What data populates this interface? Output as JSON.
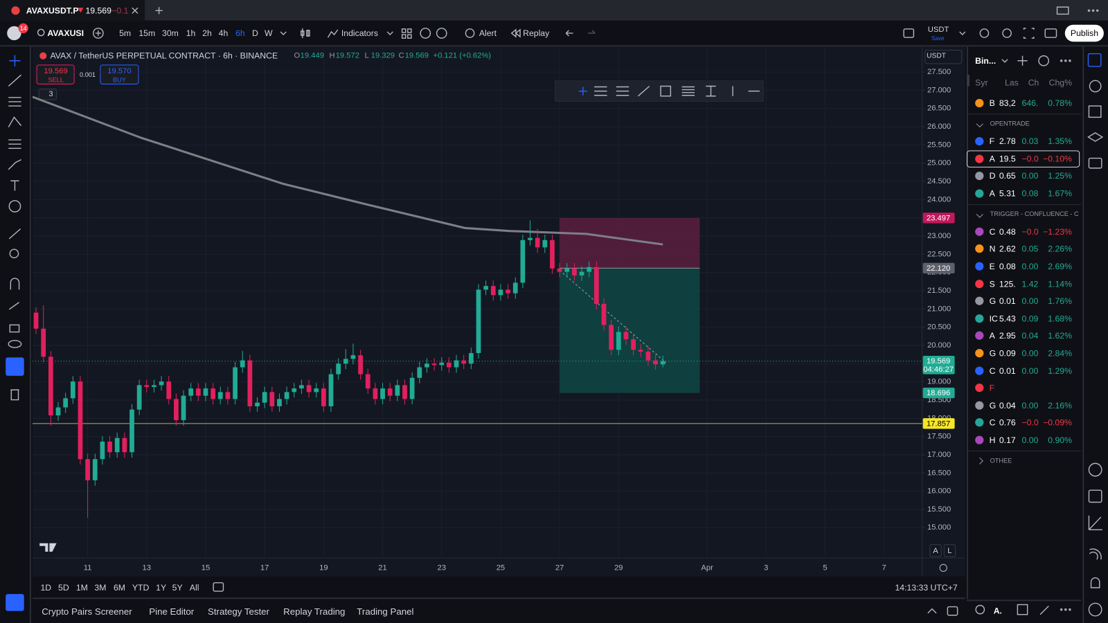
{
  "tab": {
    "title": "AVAXUSDT.P",
    "price": "19.569",
    "change": "−0.1"
  },
  "header": {
    "notifications": "14",
    "symbol": "AVAXUSI",
    "intervals": [
      "5m",
      "15m",
      "30m",
      "1h",
      "2h",
      "4h",
      "6h",
      "D",
      "W"
    ],
    "active_interval_index": 6,
    "indicators": "Indicators",
    "alert": "Alert",
    "replay": "Replay",
    "currency": "USDT",
    "save": "Save",
    "publish": "Publish"
  },
  "chart": {
    "type": "candlestick",
    "legend": "AVAX / TetherUS PERPETUAL CONTRACT · 6h · BINANCE",
    "ohlc_labels": [
      "O",
      "H",
      "L",
      "C"
    ],
    "ohlc_values": [
      "19.449",
      "19.572",
      "19.329",
      "19.569"
    ],
    "change": "+0.121 (+0.62%)",
    "trade": {
      "sell_price": "19.569",
      "sell": "SELL",
      "spread": "0.001",
      "buy_price": "19.570",
      "buy": "BUY"
    },
    "indicator_count": "3",
    "axis_currency": "USDT",
    "axis_buttons": [
      "A",
      "L"
    ],
    "xlim": [
      9.13,
      39.29
    ],
    "ylim": [
      14.167,
      28.198
    ],
    "xticks": [
      11,
      13,
      15,
      17,
      19,
      21,
      23,
      25,
      27,
      29,
      {
        "value": 32,
        "label": "Apr"
      },
      {
        "value": 34,
        "label": "3"
      },
      {
        "value": 36,
        "label": "5"
      },
      {
        "value": 38,
        "label": "7"
      }
    ],
    "yticks": [
      {
        "value": 15,
        "label": "15.000"
      },
      {
        "value": 15.5,
        "label": "15.500"
      },
      {
        "value": 16,
        "label": "16.000"
      },
      {
        "value": 16.5,
        "label": "16.500"
      },
      {
        "value": 17,
        "label": "17.000"
      },
      {
        "value": 17.5,
        "label": "17.500"
      },
      {
        "value": 18,
        "label": "18.000"
      },
      {
        "value": 18.5,
        "label": "18.500"
      },
      {
        "value": 19,
        "label": "19.000"
      },
      {
        "value": 19.5,
        "label": "19.500"
      },
      {
        "value": 20,
        "label": "20.000"
      },
      {
        "value": 20.5,
        "label": "20.500"
      },
      {
        "value": 21,
        "label": "21.000"
      },
      {
        "value": 21.5,
        "label": "21.500"
      },
      {
        "value": 22,
        "label": "22.000"
      },
      {
        "value": 22.5,
        "label": "22.500"
      },
      {
        "value": 23,
        "label": "23.000"
      },
      {
        "value": 23.5,
        "label": "23.500"
      },
      {
        "value": 24,
        "label": "24.000"
      },
      {
        "value": 24.5,
        "label": "24.500"
      },
      {
        "value": 25,
        "label": "25.000"
      },
      {
        "value": 25.5,
        "label": "25.500"
      },
      {
        "value": 26,
        "label": "26.000"
      },
      {
        "value": 26.5,
        "label": "26.500"
      },
      {
        "value": 27,
        "label": "27.000"
      },
      {
        "value": 27.5,
        "label": "27.500"
      }
    ],
    "grid": true,
    "up_color": "#22ab94",
    "down_color": "#e2205e",
    "candles": {
      "x": [
        9.25,
        9.5,
        9.75,
        10,
        10.25,
        10.5,
        10.75,
        11,
        11.25,
        11.5,
        11.75,
        12,
        12.25,
        12.5,
        12.75,
        13,
        13.25,
        13.5,
        13.75,
        14,
        14.25,
        14.5,
        14.75,
        15,
        15.25,
        15.5,
        15.75,
        16,
        16.25,
        16.5,
        16.75,
        17,
        17.25,
        17.5,
        17.75,
        18,
        18.25,
        18.5,
        18.75,
        19,
        19.25,
        19.5,
        19.75,
        20,
        20.25,
        20.5,
        20.75,
        21,
        21.25,
        21.5,
        21.75,
        22,
        22.25,
        22.5,
        22.75,
        23,
        23.25,
        23.5,
        23.75,
        24,
        24.25,
        24.5,
        24.75,
        25,
        25.25,
        25.5,
        25.75,
        26,
        26.25,
        26.5,
        26.75,
        27,
        27.25,
        27.5,
        27.75,
        28,
        28.25,
        28.5,
        28.75,
        29,
        29.25,
        29.5,
        29.75,
        30,
        30.25,
        30.5
      ],
      "open": [
        20.9,
        20.46,
        19.69,
        18.08,
        18.3,
        18.55,
        19.01,
        16.88,
        16.3,
        16.88,
        17.36,
        17.07,
        17.46,
        17.07,
        18.24,
        18.91,
        18.86,
        18.91,
        19.01,
        18.53,
        17.95,
        18.62,
        18.82,
        18.62,
        18.82,
        18.53,
        18.72,
        18.53,
        19.4,
        19.59,
        18.33,
        18.43,
        18.72,
        18.33,
        18.53,
        18.72,
        18.82,
        18.91,
        18.72,
        18.82,
        18.33,
        19.21,
        19.5,
        19.63,
        19.73,
        19.21,
        18.82,
        18.53,
        18.82,
        18.62,
        18.91,
        18.53,
        19.11,
        19.4,
        19.5,
        19.46,
        19.53,
        19.4,
        19.59,
        19.5,
        19.79,
        21.53,
        21.63,
        21.38,
        21.53,
        21.43,
        21.72,
        22.89,
        22.95,
        22.69,
        22.89,
        22.11,
        22.02,
        22.11,
        21.92,
        22.02,
        22.15,
        21.14,
        20.56,
        19.88,
        20.37,
        20.17,
        19.88,
        19.83,
        19.59,
        19.48
      ],
      "high": [
        21.05,
        21.1,
        19.84,
        18.45,
        18.7,
        19.16,
        19.16,
        17.03,
        17.03,
        17.51,
        17.51,
        17.61,
        17.61,
        18.39,
        19.06,
        19.06,
        19.06,
        19.16,
        19.16,
        18.68,
        18.77,
        18.97,
        18.97,
        18.97,
        18.97,
        18.87,
        18.87,
        19.55,
        19.85,
        19.74,
        18.58,
        18.87,
        18.87,
        18.68,
        18.87,
        18.97,
        19.06,
        19.06,
        18.97,
        18.97,
        19.36,
        19.65,
        19.9,
        20.05,
        19.88,
        19.36,
        18.97,
        18.97,
        18.97,
        19.06,
        19.06,
        19.26,
        19.55,
        19.65,
        19.65,
        19.68,
        19.68,
        19.74,
        19.74,
        19.94,
        21.68,
        21.78,
        21.78,
        21.68,
        21.68,
        21.87,
        23.04,
        23.43,
        23.2,
        23.04,
        23.04,
        22.26,
        22.26,
        22.26,
        22.17,
        22.3,
        22.3,
        21.29,
        20.71,
        20.52,
        20.52,
        20.32,
        20.03,
        19.98,
        19.74,
        19.72
      ],
      "low": [
        20.31,
        19.54,
        17.8,
        17.93,
        18.15,
        18.4,
        16.73,
        15.27,
        16.15,
        16.73,
        16.92,
        16.92,
        16.92,
        16.92,
        18.09,
        18.71,
        18.71,
        18.76,
        18.38,
        17.8,
        17.8,
        18.47,
        18.47,
        18.47,
        18.38,
        18.38,
        18.38,
        18.38,
        19.25,
        18.18,
        18.18,
        18.28,
        18.18,
        18.18,
        18.38,
        18.57,
        18.67,
        18.57,
        18.57,
        18.18,
        18.18,
        19.06,
        19.35,
        19.48,
        19.06,
        18.67,
        18.38,
        18.38,
        18.47,
        18.47,
        18.38,
        18.38,
        18.96,
        19.25,
        19.31,
        19.31,
        19.25,
        19.25,
        19.35,
        19.35,
        19.64,
        21.38,
        21.23,
        21.23,
        21.28,
        21.28,
        21.57,
        22.74,
        22.54,
        22.54,
        21.96,
        21.87,
        21.87,
        21.77,
        21.77,
        21.87,
        20.99,
        20.41,
        19.73,
        19.73,
        20.02,
        19.73,
        19.68,
        19.44,
        19.33,
        19.4
      ],
      "close": [
        20.46,
        19.69,
        18.08,
        18.3,
        18.55,
        19.01,
        16.88,
        16.3,
        16.88,
        17.36,
        17.07,
        17.46,
        17.07,
        18.24,
        18.91,
        18.86,
        18.91,
        19.01,
        18.53,
        17.95,
        18.62,
        18.82,
        18.62,
        18.82,
        18.53,
        18.72,
        18.53,
        19.4,
        19.59,
        18.33,
        18.43,
        18.72,
        18.33,
        18.53,
        18.72,
        18.82,
        18.91,
        18.72,
        18.82,
        18.33,
        19.21,
        19.5,
        19.63,
        19.73,
        19.21,
        18.82,
        18.53,
        18.82,
        18.62,
        18.91,
        18.53,
        19.11,
        19.4,
        19.5,
        19.46,
        19.53,
        19.4,
        19.59,
        19.5,
        19.79,
        21.53,
        21.63,
        21.38,
        21.53,
        21.43,
        21.72,
        22.89,
        22.95,
        22.69,
        22.89,
        22.11,
        22.02,
        22.11,
        21.92,
        22.02,
        22.15,
        21.14,
        20.56,
        19.88,
        20.37,
        20.17,
        19.88,
        19.83,
        19.59,
        19.48,
        19.57
      ]
    },
    "ma": {
      "color": "#7d7f86",
      "x": [
        9.13,
        12.8,
        17.6,
        20.5,
        23.8,
        25.3,
        27.9,
        30.5
      ],
      "values": [
        26.82,
        25.7,
        24.44,
        23.86,
        23.22,
        23.14,
        23.06,
        22.77
      ]
    },
    "position": {
      "x": [
        27,
        31.75
      ],
      "stop_color": "#5a1f3e",
      "target_color": "#0f4644"
    },
    "levels": {
      "stop": 23.497,
      "entry": {
        "value": 22.12,
        "label": "22.120"
      },
      "target": 18.696,
      "hline": 17.857,
      "hline_color": "#e6d94a",
      "last": 19.569,
      "countdown": "04:46:27"
    }
  },
  "footer": {
    "ranges": [
      "1D",
      "5D",
      "1M",
      "3M",
      "6M",
      "YTD",
      "1Y",
      "5Y",
      "All"
    ],
    "clock": "14:13:33 UTC+7",
    "panels": [
      "Crypto Pairs Screener",
      "Pine Editor",
      "Strategy Tester",
      "Replay Trading",
      "Trading Panel"
    ]
  },
  "watchlist": {
    "title": "Bin...",
    "columns": [
      "Syr",
      "Las",
      "Ch",
      "Chg%"
    ],
    "pinned": [
      {
        "symbol": "B",
        "last": "83,2",
        "change": "646.",
        "change_pct": "0.78%",
        "color": "#22ab94"
      }
    ],
    "sections": [
      {
        "name": "OPENTRADE",
        "rows": [
          {
            "symbol": "F",
            "last": "2.78",
            "change": "0.03",
            "change_pct": "1.35%",
            "color": "#22ab94"
          },
          {
            "symbol": "A",
            "last": "19.5",
            "change": "−0.0",
            "change_pct": "−0.10%",
            "color": "#f23645",
            "selected": true
          },
          {
            "symbol": "D",
            "last": "0.65",
            "change": "0.00",
            "change_pct": "1.25%",
            "color": "#22ab94"
          },
          {
            "symbol": "A",
            "last": "5.31",
            "change": "0.08",
            "change_pct": "1.67%",
            "color": "#22ab94"
          }
        ]
      },
      {
        "name": "TRIGGER - CONFLUENCE - C",
        "rows": [
          {
            "symbol": "C",
            "last": "0.48",
            "change": "−0.0",
            "change_pct": "−1.23%",
            "color": "#f23645"
          },
          {
            "symbol": "N",
            "last": "2.62",
            "change": "0.05",
            "change_pct": "2.26%",
            "color": "#22ab94"
          },
          {
            "symbol": "E",
            "last": "0.08",
            "change": "0.00",
            "change_pct": "2.69%",
            "color": "#22ab94"
          },
          {
            "symbol": "S",
            "last": "125.",
            "change": "1.42",
            "change_pct": "1.14%",
            "color": "#22ab94"
          },
          {
            "symbol": "G",
            "last": "0.01",
            "change": "0.00",
            "change_pct": "1.76%",
            "color": "#22ab94"
          },
          {
            "symbol": "IC",
            "last": "5.43",
            "change": "0.09",
            "change_pct": "1.68%",
            "color": "#22ab94"
          },
          {
            "symbol": "A",
            "last": "2.95",
            "change": "0.04",
            "change_pct": "1.62%",
            "color": "#22ab94"
          },
          {
            "symbol": "G",
            "last": "0.09",
            "change": "0.00",
            "change_pct": "2.84%",
            "color": "#22ab94"
          },
          {
            "symbol": "C",
            "last": "0.01",
            "change": "0.00",
            "change_pct": "1.29%",
            "color": "#22ab94"
          },
          {
            "symbol": "F",
            "color": "#f23645"
          },
          {
            "symbol": "G",
            "last": "0.04",
            "change": "0.00",
            "change_pct": "2.16%",
            "color": "#22ab94"
          },
          {
            "symbol": "C",
            "last": "0.76",
            "change": "−0.0",
            "change_pct": "−0.09%",
            "color": "#f23645"
          },
          {
            "symbol": "H",
            "last": "0.17",
            "change": "0.00",
            "change_pct": "0.90%",
            "color": "#22ab94"
          }
        ]
      },
      {
        "name": "OTHEE",
        "rows": []
      }
    ],
    "footer_symbol": "A."
  }
}
